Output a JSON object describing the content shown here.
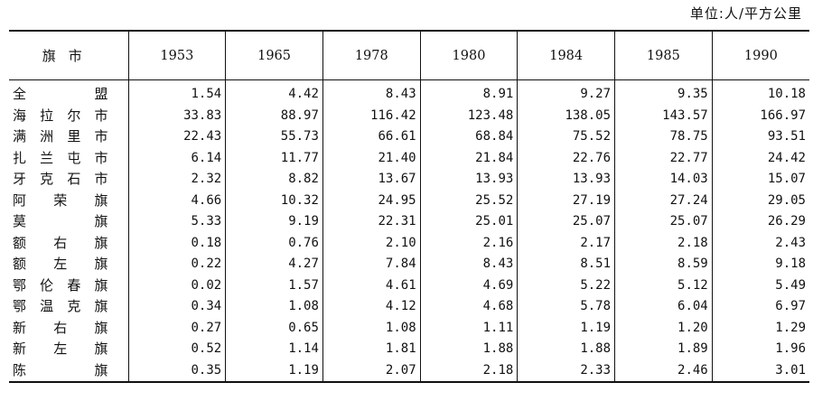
{
  "unit_label": "单位:人/平方公里",
  "table": {
    "name_header": "旗市",
    "years": [
      "1953",
      "1965",
      "1978",
      "1980",
      "1984",
      "1985",
      "1990"
    ],
    "rows": [
      {
        "name": "全盟",
        "values": [
          "1.54",
          "4.42",
          "8.43",
          "8.91",
          "9.27",
          "9.35",
          "10.18"
        ]
      },
      {
        "name": "海拉尔市",
        "values": [
          "33.83",
          "88.97",
          "116.42",
          "123.48",
          "138.05",
          "143.57",
          "166.97"
        ]
      },
      {
        "name": "满洲里市",
        "values": [
          "22.43",
          "55.73",
          "66.61",
          "68.84",
          "75.52",
          "78.75",
          "93.51"
        ]
      },
      {
        "name": "扎兰屯市",
        "values": [
          "6.14",
          "11.77",
          "21.40",
          "21.84",
          "22.76",
          "22.77",
          "24.42"
        ]
      },
      {
        "name": "牙克石市",
        "values": [
          "2.32",
          "8.82",
          "13.67",
          "13.93",
          "13.93",
          "14.03",
          "15.07"
        ]
      },
      {
        "name": "阿荣旗",
        "values": [
          "4.66",
          "10.32",
          "24.95",
          "25.52",
          "27.19",
          "27.24",
          "29.05"
        ]
      },
      {
        "name": "莫旗",
        "values": [
          "5.33",
          "9.19",
          "22.31",
          "25.01",
          "25.07",
          "25.07",
          "26.29"
        ]
      },
      {
        "name": "额右旗",
        "values": [
          "0.18",
          "0.76",
          "2.10",
          "2.16",
          "2.17",
          "2.18",
          "2.43"
        ]
      },
      {
        "name": "额左旗",
        "values": [
          "0.22",
          "4.27",
          "7.84",
          "8.43",
          "8.51",
          "8.59",
          "9.18"
        ]
      },
      {
        "name": "鄂伦春旗",
        "values": [
          "0.02",
          "1.57",
          "4.61",
          "4.69",
          "5.22",
          "5.12",
          "5.49"
        ]
      },
      {
        "name": "鄂温克旗",
        "values": [
          "0.34",
          "1.08",
          "4.12",
          "4.68",
          "5.78",
          "6.04",
          "6.97"
        ]
      },
      {
        "name": "新右旗",
        "values": [
          "0.27",
          "0.65",
          "1.08",
          "1.11",
          "1.19",
          "1.20",
          "1.29"
        ]
      },
      {
        "name": "新左旗",
        "values": [
          "0.52",
          "1.14",
          "1.81",
          "1.88",
          "1.88",
          "1.89",
          "1.96"
        ]
      },
      {
        "name": "陈旗",
        "values": [
          "0.35",
          "1.19",
          "2.07",
          "2.18",
          "2.33",
          "2.46",
          "3.01"
        ]
      }
    ]
  }
}
